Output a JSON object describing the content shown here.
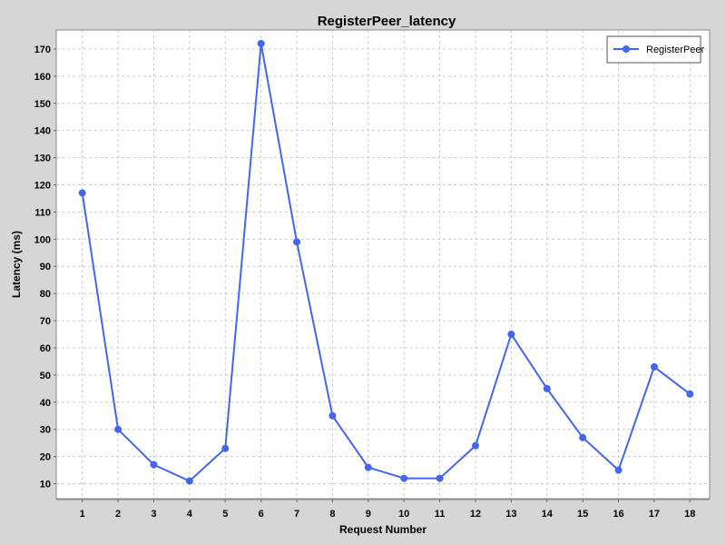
{
  "chart_data": {
    "type": "line",
    "title": "RegisterPeer_latency",
    "xlabel": "Request Number",
    "ylabel": "Latency (ms)",
    "categories": [
      "1",
      "2",
      "3",
      "4",
      "5",
      "6",
      "7",
      "8",
      "9",
      "10",
      "11",
      "12",
      "13",
      "14",
      "15",
      "16",
      "17",
      "18"
    ],
    "series": [
      {
        "name": "RegisterPeer",
        "color": "#4466ee",
        "values": [
          117,
          30,
          17,
          11,
          23,
          172,
          99,
          35,
          16,
          12,
          12,
          24,
          65,
          45,
          27,
          15,
          53,
          43
        ]
      }
    ],
    "ylim": [
      4.5,
      177
    ],
    "yticks": [
      10,
      20,
      30,
      40,
      50,
      60,
      70,
      80,
      90,
      100,
      110,
      120,
      130,
      140,
      150,
      160,
      170
    ],
    "grid": true,
    "legend_position": "top-right"
  }
}
